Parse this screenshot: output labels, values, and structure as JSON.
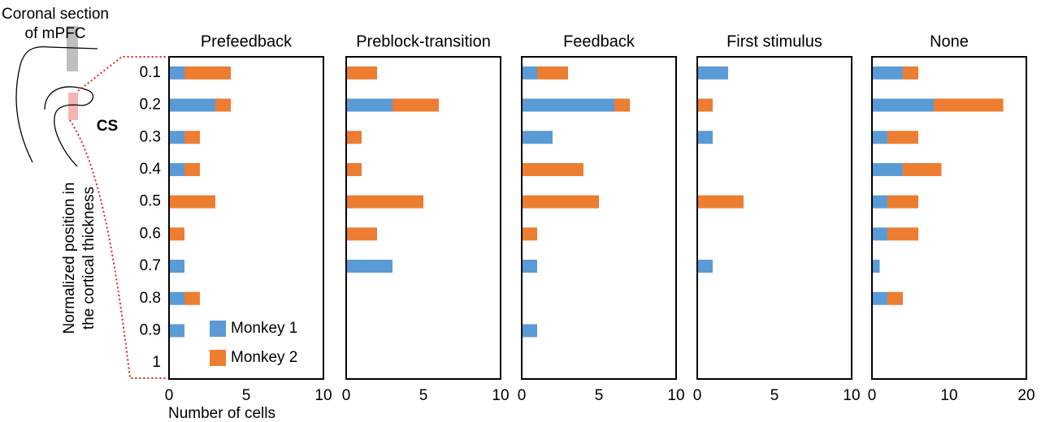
{
  "diagram": {
    "label_lines": [
      "Coronal section",
      "of mPFC"
    ],
    "sulcus_label": "CS"
  },
  "chart_data": [
    {
      "type": "bar",
      "orientation": "horizontal",
      "stacked": true,
      "title": "Prefeedback",
      "y_label_lines": [
        "Normalized position in",
        "the cortical thickness"
      ],
      "x_label": "Number of cells",
      "categories": [
        "0.1",
        "0.2",
        "0.3",
        "0.4",
        "0.5",
        "0.6",
        "0.7",
        "0.8",
        "0.9",
        "1"
      ],
      "series": [
        {
          "name": "Monkey 1",
          "color": "#5b9bd5",
          "values": [
            1,
            3,
            1,
            1,
            0,
            0,
            1,
            1,
            1,
            0
          ]
        },
        {
          "name": "Monkey 2",
          "color": "#ed7d31",
          "values": [
            3,
            1,
            1,
            1,
            3,
            1,
            0,
            1,
            0,
            0
          ]
        }
      ],
      "xlim": [
        0,
        10
      ],
      "xticks": [
        0,
        5,
        10
      ],
      "legend": "bottom-right"
    },
    {
      "type": "bar",
      "orientation": "horizontal",
      "stacked": true,
      "title": "Preblock-transition",
      "series": [
        {
          "color": "#5b9bd5",
          "values": [
            0,
            3,
            0,
            0,
            0,
            0,
            3,
            0,
            0,
            0
          ]
        },
        {
          "color": "#ed7d31",
          "values": [
            2,
            3,
            1,
            1,
            5,
            2,
            0,
            0,
            0,
            0
          ]
        }
      ],
      "xlim": [
        0,
        10
      ],
      "xticks": [
        0,
        5,
        10
      ]
    },
    {
      "type": "bar",
      "orientation": "horizontal",
      "stacked": true,
      "title": "Feedback",
      "series": [
        {
          "color": "#5b9bd5",
          "values": [
            1,
            6,
            2,
            0,
            0,
            0,
            1,
            0,
            1,
            0
          ]
        },
        {
          "color": "#ed7d31",
          "values": [
            2,
            1,
            0,
            4,
            5,
            1,
            0,
            0,
            0,
            0
          ]
        }
      ],
      "xlim": [
        0,
        10
      ],
      "xticks": [
        0,
        5,
        10
      ]
    },
    {
      "type": "bar",
      "orientation": "horizontal",
      "stacked": true,
      "title": "First stimulus",
      "series": [
        {
          "color": "#5b9bd5",
          "values": [
            2,
            0,
            1,
            0,
            0,
            0,
            1,
            0,
            0,
            0
          ]
        },
        {
          "color": "#ed7d31",
          "values": [
            0,
            1,
            0,
            0,
            3,
            0,
            0,
            0,
            0,
            0
          ]
        }
      ],
      "xlim": [
        0,
        10
      ],
      "xticks": [
        0,
        5,
        10
      ]
    },
    {
      "type": "bar",
      "orientation": "horizontal",
      "stacked": true,
      "title": "None",
      "series": [
        {
          "color": "#5b9bd5",
          "values": [
            4,
            8,
            2,
            4,
            2,
            2,
            1,
            2,
            0,
            0
          ]
        },
        {
          "color": "#ed7d31",
          "values": [
            2,
            9,
            4,
            5,
            4,
            4,
            0,
            2,
            0,
            0
          ]
        }
      ],
      "xlim": [
        0,
        20
      ],
      "xticks": [
        0,
        10,
        20
      ]
    }
  ]
}
